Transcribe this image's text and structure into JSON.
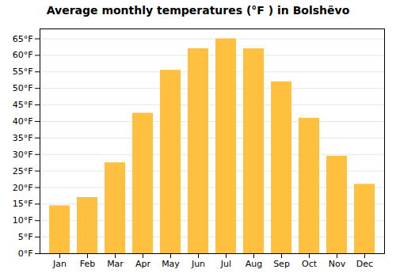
{
  "chart_data": {
    "type": "bar",
    "title": "Average monthly temperatures (°F ) in Bolshёvo",
    "categories": [
      "Jan",
      "Feb",
      "Mar",
      "Apr",
      "May",
      "Jun",
      "Jul",
      "Aug",
      "Sep",
      "Oct",
      "Nov",
      "Dec"
    ],
    "values": [
      14.5,
      17,
      27.5,
      42.5,
      55.5,
      62,
      65,
      62,
      52,
      41,
      29.5,
      21
    ],
    "color": "#FFC040",
    "ylim": [
      0,
      68
    ],
    "yticks": [
      {
        "value": 0,
        "label": "0°F"
      },
      {
        "value": 5,
        "label": "5°F"
      },
      {
        "value": 10,
        "label": "10°F"
      },
      {
        "value": 15,
        "label": "15°F"
      },
      {
        "value": 20,
        "label": "20°F"
      },
      {
        "value": 25,
        "label": "25°F"
      },
      {
        "value": 30,
        "label": "30°F"
      },
      {
        "value": 35,
        "label": "35°F"
      },
      {
        "value": 40,
        "label": "40°F"
      },
      {
        "value": 45,
        "label": "45°F"
      },
      {
        "value": 50,
        "label": "50°F"
      },
      {
        "value": 55,
        "label": "55°F"
      },
      {
        "value": 60,
        "label": "60°F"
      },
      {
        "value": 65,
        "label": "65°F"
      }
    ],
    "grid": true
  }
}
